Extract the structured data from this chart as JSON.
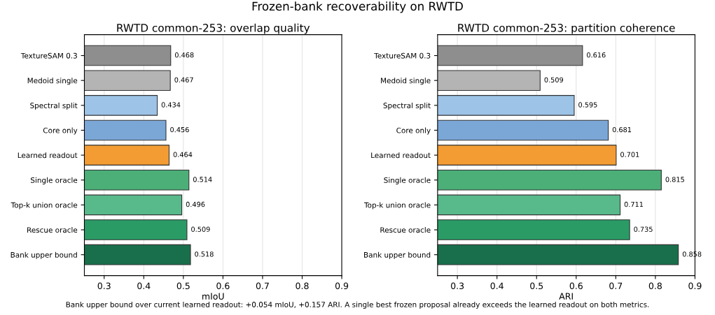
{
  "chart_data": [
    {
      "type": "bar",
      "orientation": "horizontal",
      "title": "RWTD common-253: overlap quality",
      "xlabel": "mIoU",
      "categories": [
        "TextureSAM 0.3",
        "Medoid single",
        "Spectral split",
        "Core only",
        "Learned readout",
        "Single oracle",
        "Top-k union oracle",
        "Rescue oracle",
        "Bank upper bound"
      ],
      "values": [
        0.468,
        0.467,
        0.434,
        0.456,
        0.464,
        0.514,
        0.496,
        0.509,
        0.518
      ],
      "colors": [
        "#8e8e8e",
        "#b4b4b4",
        "#9dc3e6",
        "#7ba7d7",
        "#f39c33",
        "#4caf78",
        "#58b98b",
        "#2b9b66",
        "#196f4b"
      ],
      "xlim": [
        0.25,
        0.9
      ],
      "xticks": [
        0.3,
        0.4,
        0.5,
        0.6,
        0.7,
        0.8,
        0.9
      ],
      "grid": "x",
      "data_labels": true,
      "annotations": [
        "Frozen-bank recoverability on RWTD"
      ]
    },
    {
      "type": "bar",
      "orientation": "horizontal",
      "title": "RWTD common-253: partition coherence",
      "xlabel": "ARI",
      "categories": [
        "TextureSAM 0.3",
        "Medoid single",
        "Spectral split",
        "Core only",
        "Learned readout",
        "Single oracle",
        "Top-k union oracle",
        "Rescue oracle",
        "Bank upper bound"
      ],
      "values": [
        0.616,
        0.509,
        0.595,
        0.681,
        0.701,
        0.815,
        0.711,
        0.735,
        0.858
      ],
      "colors": [
        "#8e8e8e",
        "#b4b4b4",
        "#9dc3e6",
        "#7ba7d7",
        "#f39c33",
        "#4caf78",
        "#58b98b",
        "#2b9b66",
        "#196f4b"
      ],
      "xlim": [
        0.25,
        0.9
      ],
      "xticks": [
        0.3,
        0.4,
        0.5,
        0.6,
        0.7,
        0.8,
        0.9
      ],
      "grid": "x",
      "data_labels": true,
      "annotations": [
        "Bank upper bound over current learned readout: +0.054 mIoU, +0.157 ARI. A single best frozen proposal already exceeds the learned readout on both metrics."
      ]
    }
  ]
}
